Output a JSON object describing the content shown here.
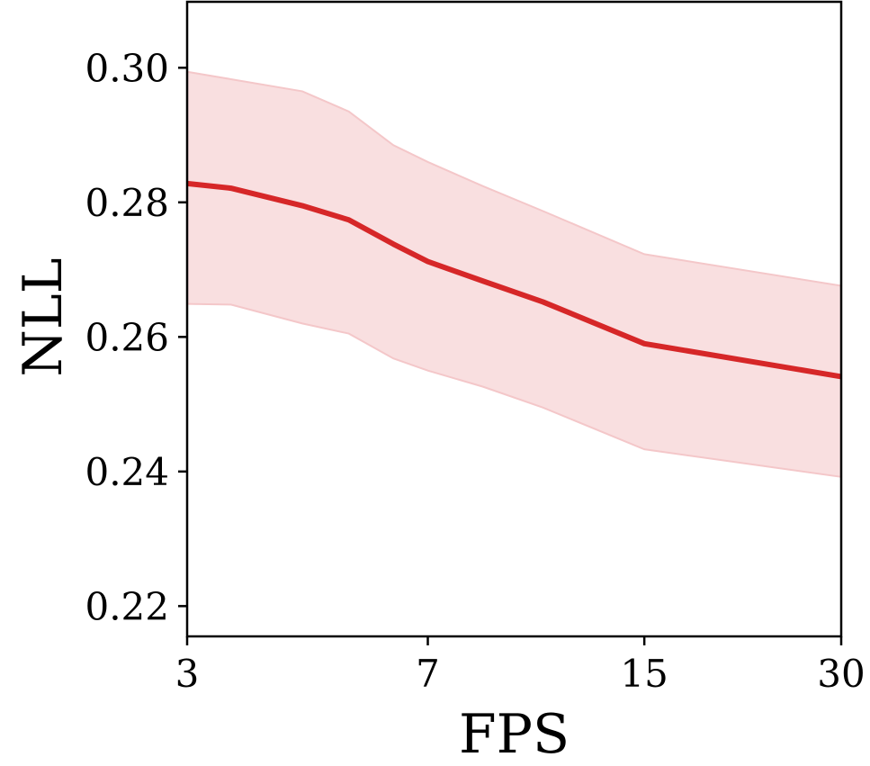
{
  "chart_data": {
    "type": "line",
    "xlabel": "FPS",
    "ylabel": "NLL",
    "x_scale": "log",
    "x": [
      3,
      3.5,
      4.5,
      5.3,
      6.2,
      7,
      8.5,
      10.5,
      15,
      30
    ],
    "x_ticks": [
      3,
      7,
      15,
      30
    ],
    "x_tick_labels": [
      "3",
      "7",
      "15",
      "30"
    ],
    "xlim": [
      3,
      30
    ],
    "y_ticks": [
      0.22,
      0.24,
      0.26,
      0.28,
      0.3
    ],
    "y_tick_labels": [
      "0.22",
      "0.24",
      "0.26",
      "0.28",
      "0.30"
    ],
    "ylim": [
      0.2155,
      0.3098
    ],
    "grid": false,
    "series": [
      {
        "values": [
          0.2828,
          0.2821,
          0.2795,
          0.2774,
          0.2738,
          0.2712,
          0.2683,
          0.2652,
          0.259,
          0.2541
        ],
        "upper": [
          0.2994,
          0.2983,
          0.2965,
          0.2935,
          0.2885,
          0.286,
          0.2824,
          0.2787,
          0.2723,
          0.2676
        ],
        "lower": [
          0.2649,
          0.2648,
          0.262,
          0.2605,
          0.2568,
          0.255,
          0.2526,
          0.2495,
          0.2433,
          0.2392
        ],
        "color": "#d62728",
        "band_color": "#f9dfe0"
      }
    ]
  }
}
